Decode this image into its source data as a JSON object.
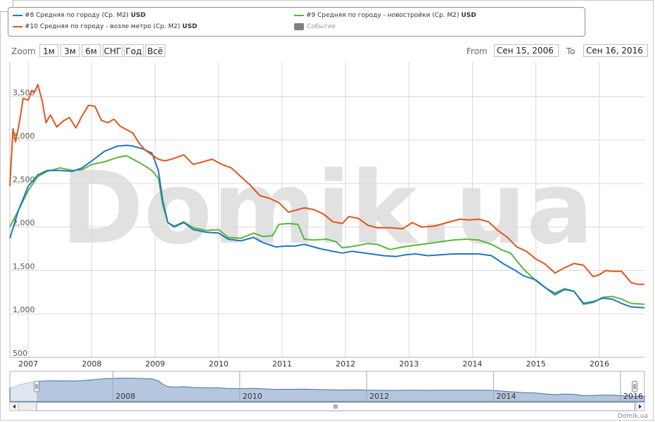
{
  "legend": {
    "items": [
      {
        "label": "#8 Средняя по городу (Ср. М2)",
        "unit": "USD",
        "color": "#1f77c4"
      },
      {
        "label": "#9 Средняя по городу - новостройки (Ср. М2)",
        "unit": "USD",
        "color": "#5ab53a"
      },
      {
        "label": "#10 Средняя по городу - возле метро (Ср. М2)",
        "unit": "USD",
        "color": "#e0561d"
      },
      {
        "label": "События",
        "unit": "",
        "color": "#808080"
      }
    ]
  },
  "zoom": {
    "label": "Zoom",
    "buttons": [
      "1м",
      "3м",
      "6м",
      "СНГ",
      "Год",
      "Всё"
    ]
  },
  "range": {
    "from_label": "From",
    "from_value": "Сен 15, 2006",
    "to_label": "To",
    "to_value": "Сен 16, 2016"
  },
  "watermark": "Domik.ua",
  "credit": "Domik.ua",
  "chart_data": {
    "type": "line",
    "xlim": [
      2006.71,
      2016.71
    ],
    "ylim": [
      500,
      3900
    ],
    "y_ticks": [
      500,
      1000,
      1500,
      2000,
      2500,
      3000,
      3500
    ],
    "y_tick_labels": [
      "500",
      "1,000",
      "1,500",
      "2,000",
      "2,500",
      "3,000",
      "3,500"
    ],
    "x_ticks": [
      2007,
      2008,
      2009,
      2010,
      2011,
      2012,
      2013,
      2014,
      2015,
      2016
    ],
    "x_tick_labels": [
      "2007",
      "2008",
      "2009",
      "2010",
      "2011",
      "2012",
      "2013",
      "2014",
      "2015",
      "2016"
    ],
    "grid": true,
    "series": [
      {
        "name": "#8 Средняя по городу (Ср. М2)",
        "color": "#1f77c4",
        "x": [
          2006.71,
          2006.85,
          2007.0,
          2007.15,
          2007.3,
          2007.5,
          2007.7,
          2007.85,
          2008.0,
          2008.2,
          2008.4,
          2008.55,
          2008.65,
          2008.8,
          2008.95,
          2009.05,
          2009.12,
          2009.2,
          2009.3,
          2009.45,
          2009.6,
          2009.8,
          2010.0,
          2010.15,
          2010.35,
          2010.55,
          2010.7,
          2010.9,
          2011.05,
          2011.2,
          2011.35,
          2011.6,
          2011.8,
          2011.95,
          2012.1,
          2012.4,
          2012.6,
          2012.8,
          2012.95,
          2013.1,
          2013.3,
          2013.5,
          2013.7,
          2013.9,
          2014.1,
          2014.3,
          2014.5,
          2014.65,
          2014.8,
          2015.0,
          2015.15,
          2015.3,
          2015.45,
          2015.6,
          2015.75,
          2015.9,
          2016.05,
          2016.2,
          2016.35,
          2016.5,
          2016.71
        ],
        "y": [
          1870,
          2200,
          2470,
          2600,
          2650,
          2650,
          2640,
          2680,
          2760,
          2870,
          2930,
          2940,
          2930,
          2900,
          2850,
          2650,
          2300,
          2050,
          2000,
          2050,
          1970,
          1940,
          1930,
          1860,
          1840,
          1880,
          1820,
          1770,
          1780,
          1780,
          1800,
          1750,
          1720,
          1700,
          1720,
          1690,
          1670,
          1660,
          1680,
          1690,
          1670,
          1680,
          1690,
          1690,
          1690,
          1670,
          1570,
          1510,
          1440,
          1390,
          1300,
          1220,
          1280,
          1260,
          1120,
          1140,
          1180,
          1170,
          1120,
          1080,
          1070
        ]
      },
      {
        "name": "#9 Средняя по городу - новостройки (Ср. М2)",
        "color": "#5ab53a",
        "x": [
          2006.71,
          2006.85,
          2007.0,
          2007.15,
          2007.3,
          2007.5,
          2007.7,
          2007.85,
          2008.0,
          2008.2,
          2008.4,
          2008.55,
          2008.65,
          2008.8,
          2008.95,
          2009.05,
          2009.12,
          2009.2,
          2009.3,
          2009.45,
          2009.6,
          2009.8,
          2010.0,
          2010.15,
          2010.35,
          2010.55,
          2010.7,
          2010.85,
          2010.95,
          2011.1,
          2011.25,
          2011.35,
          2011.5,
          2011.7,
          2011.85,
          2011.95,
          2012.15,
          2012.35,
          2012.5,
          2012.7,
          2012.9,
          2013.1,
          2013.3,
          2013.5,
          2013.7,
          2013.9,
          2014.1,
          2014.3,
          2014.45,
          2014.6,
          2014.8,
          2015.0,
          2015.15,
          2015.3,
          2015.45,
          2015.6,
          2015.75,
          2015.9,
          2016.05,
          2016.2,
          2016.35,
          2016.5,
          2016.71
        ],
        "y": [
          2000,
          2200,
          2420,
          2580,
          2640,
          2680,
          2650,
          2660,
          2720,
          2750,
          2800,
          2820,
          2780,
          2720,
          2650,
          2560,
          2250,
          2050,
          2010,
          2060,
          1990,
          1960,
          1970,
          1880,
          1870,
          1930,
          1890,
          1900,
          2030,
          2040,
          2030,
          1860,
          1850,
          1860,
          1830,
          1760,
          1780,
          1810,
          1800,
          1740,
          1770,
          1790,
          1810,
          1830,
          1850,
          1860,
          1850,
          1800,
          1740,
          1700,
          1520,
          1380,
          1300,
          1240,
          1290,
          1260,
          1110,
          1130,
          1190,
          1200,
          1170,
          1120,
          1110
        ]
      },
      {
        "name": "#10 Средняя по городу - возле метро (Ср. М2)",
        "color": "#e0561d",
        "x": [
          2006.71,
          2006.76,
          2006.8,
          2006.86,
          2006.92,
          2007.0,
          2007.05,
          2007.1,
          2007.15,
          2007.22,
          2007.28,
          2007.35,
          2007.45,
          2007.55,
          2007.65,
          2007.75,
          2007.85,
          2007.95,
          2008.05,
          2008.15,
          2008.25,
          2008.35,
          2008.45,
          2008.55,
          2008.65,
          2008.75,
          2008.85,
          2008.95,
          2009.05,
          2009.15,
          2009.3,
          2009.45,
          2009.6,
          2009.75,
          2009.9,
          2010.05,
          2010.2,
          2010.35,
          2010.5,
          2010.65,
          2010.8,
          2010.95,
          2011.1,
          2011.25,
          2011.35,
          2011.5,
          2011.65,
          2011.8,
          2011.95,
          2012.05,
          2012.2,
          2012.35,
          2012.5,
          2012.7,
          2012.9,
          2013.05,
          2013.2,
          2013.4,
          2013.6,
          2013.8,
          2013.95,
          2014.1,
          2014.25,
          2014.4,
          2014.55,
          2014.7,
          2014.85,
          2015.0,
          2015.15,
          2015.3,
          2015.45,
          2015.6,
          2015.75,
          2015.9,
          2016.0,
          2016.1,
          2016.2,
          2016.35,
          2016.5,
          2016.6,
          2016.71
        ],
        "y": [
          2470,
          3130,
          2980,
          3200,
          3480,
          3460,
          3560,
          3550,
          3640,
          3450,
          3200,
          3290,
          3150,
          3220,
          3260,
          3140,
          3280,
          3400,
          3390,
          3230,
          3200,
          3240,
          3160,
          3120,
          3080,
          2960,
          2880,
          2830,
          2780,
          2760,
          2790,
          2830,
          2720,
          2750,
          2780,
          2720,
          2680,
          2580,
          2480,
          2360,
          2330,
          2280,
          2170,
          2200,
          2220,
          2200,
          2150,
          2060,
          2040,
          2120,
          2100,
          2020,
          1990,
          1990,
          1980,
          2050,
          2000,
          2010,
          2050,
          2090,
          2080,
          2090,
          2060,
          1960,
          1880,
          1770,
          1720,
          1630,
          1570,
          1470,
          1530,
          1580,
          1560,
          1430,
          1450,
          1500,
          1490,
          1490,
          1360,
          1340,
          1340
        ]
      }
    ]
  },
  "navigator": {
    "year_labels": [
      "2008",
      "2010",
      "2012",
      "2014",
      "2016"
    ]
  }
}
